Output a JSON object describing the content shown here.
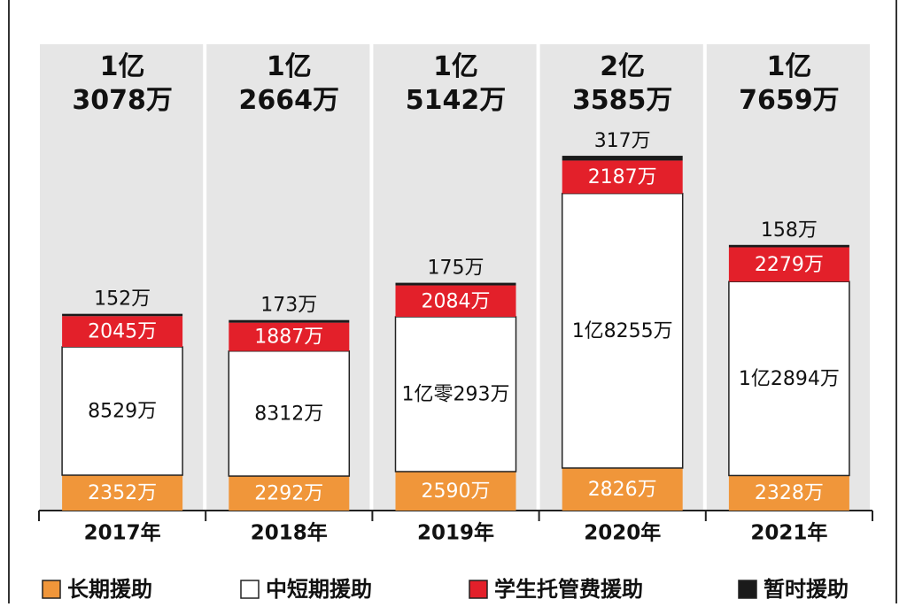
{
  "chart_data": {
    "type": "stacked-bar",
    "categories": [
      "2017年",
      "2018年",
      "2019年",
      "2020年",
      "2021年"
    ],
    "series": [
      {
        "name": "长期援助",
        "color": "#f0963a",
        "values": [
          2352,
          2292,
          2590,
          2826,
          2328
        ],
        "value_labels": [
          "2352万",
          "2292万",
          "2590万",
          "2826万",
          "2328万"
        ]
      },
      {
        "name": "中短期援助",
        "color": "#ffffff",
        "values": [
          8529,
          8312,
          10293,
          18255,
          12894
        ],
        "value_labels": [
          "8529万",
          "8312万",
          "1亿零293万",
          "1亿8255万",
          "1亿2894万"
        ]
      },
      {
        "name": "学生托管费援助",
        "color": "#e3202a",
        "values": [
          2045,
          1887,
          2084,
          2187,
          2279
        ],
        "value_labels": [
          "2045万",
          "1887万",
          "2084万",
          "2187万",
          "2279万"
        ]
      },
      {
        "name": "暂时援助",
        "color": "#1a1a1a",
        "values": [
          152,
          173,
          175,
          317,
          158
        ],
        "value_labels": [
          "152万",
          "173万",
          "175万",
          "317万",
          "158万"
        ]
      }
    ],
    "totals": [
      13078,
      12664,
      15142,
      23585,
      17659
    ],
    "total_labels": [
      [
        "1亿",
        "3078万"
      ],
      [
        "1亿",
        "2664万"
      ],
      [
        "1亿",
        "5142万"
      ],
      [
        "2亿",
        "3585万"
      ],
      [
        "1亿",
        "7659万"
      ]
    ],
    "ylim": [
      0,
      31000
    ]
  }
}
